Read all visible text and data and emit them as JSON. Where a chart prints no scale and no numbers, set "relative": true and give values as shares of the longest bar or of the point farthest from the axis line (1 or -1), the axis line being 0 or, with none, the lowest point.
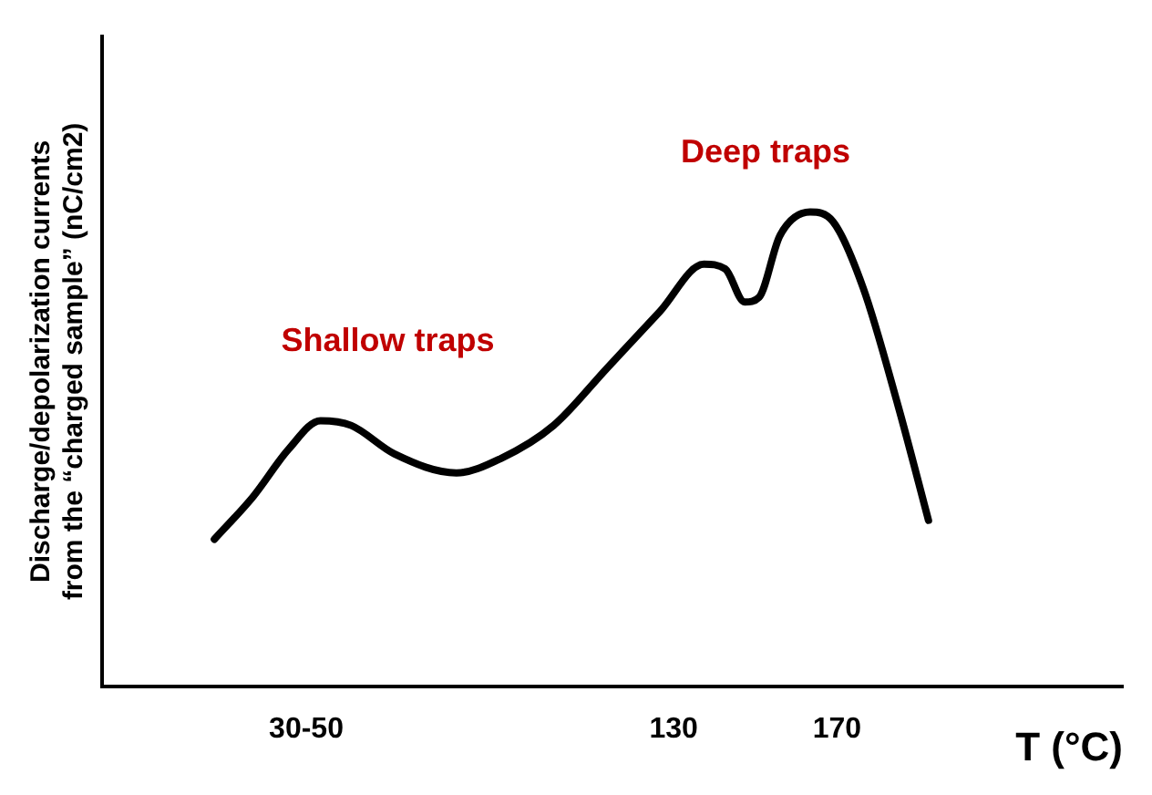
{
  "chart_data": {
    "type": "line",
    "relative": true,
    "xlabel": "T (°C)",
    "ylabel": "Discharge/depolarization currents\nfrom the “charged sample” (nC/cm2)",
    "xlim": [
      -10,
      240
    ],
    "xticks": [
      {
        "value": 40,
        "label": "30-50"
      },
      130,
      170
    ],
    "x": [
      17.5,
      27,
      35.7,
      43.5,
      51,
      61.6,
      76.8,
      87.6,
      100.6,
      113.6,
      126.6,
      137.4,
      142.6,
      147.4,
      150.9,
      156,
      163.4,
      169,
      176.4,
      185,
      192.4
    ],
    "series": [
      {
        "color": "#000000",
        "values": [
          0.31,
          0.4,
          0.5,
          0.56,
          0.55,
          0.49,
          0.45,
          0.48,
          0.55,
          0.67,
          0.79,
          0.89,
          0.88,
          0.81,
          0.82,
          0.95,
          1,
          0.98,
          0.84,
          0.59,
          0.35
        ]
      }
    ],
    "marker": "none",
    "line_style": "solid",
    "grid": false,
    "legend": false,
    "annotations": [
      "Shallow traps",
      "Deep traps"
    ]
  }
}
